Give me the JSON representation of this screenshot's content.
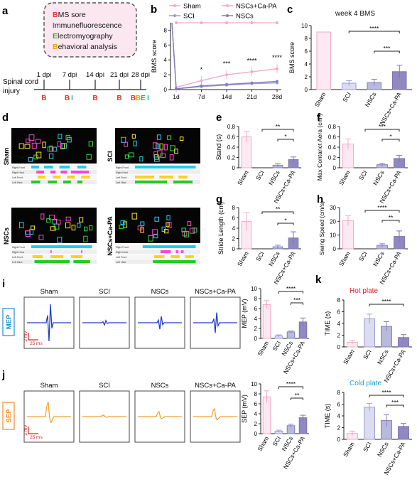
{
  "panel_letters": {
    "a": "a",
    "b": "b",
    "c": "c",
    "d": "d",
    "e": "e",
    "f": "f",
    "g": "g",
    "h": "h",
    "i": "i",
    "j": "j",
    "k": "k"
  },
  "colors": {
    "sham": "#f4a9c8",
    "sci": "#9b9bd6",
    "nscs": "#7f7fbf",
    "combo": "#8b7fc0",
    "combo_bar": "#7d73b5",
    "combo_line": "#f4a9c8",
    "mep_wave": "#1f3fc7",
    "sep_wave": "#f5a030",
    "dpi_red": "#e53333",
    "orange": "#f39c12",
    "green": "#2ea84a",
    "teal": "#2bb3b3",
    "dark": "#222222"
  },
  "timeline": {
    "box_lines": [
      {
        "first": "B",
        "rest": "MS sore",
        "color": "#e53333"
      },
      {
        "first": "I",
        "rest": "mmunefluorescence",
        "color": "#2e7dd1"
      },
      {
        "first": "E",
        "rest": "lectromyography",
        "color": "#2ea84a"
      },
      {
        "first": "B",
        "rest": "ehavioral analysis",
        "color": "#f39c12"
      }
    ],
    "injury_label_1": "Spinal cord",
    "injury_label_2": "injury",
    "dpi_labels": [
      "1 dpi",
      "7 dpi",
      "14 dpi",
      "21 dpi",
      "28 dpi"
    ],
    "marks": [
      [
        {
          "t": "B",
          "c": "#e53333"
        }
      ],
      [
        {
          "t": "B",
          "c": "#e53333"
        },
        {
          "t": "I",
          "c": "#2bb3b3"
        }
      ],
      [
        {
          "t": "B",
          "c": "#e53333"
        }
      ],
      [
        {
          "t": "B",
          "c": "#e53333"
        }
      ],
      [
        {
          "t": "B",
          "c": "#e53333"
        },
        {
          "t": "B",
          "c": "#f39c12"
        },
        {
          "t": "E",
          "c": "#2ea84a"
        },
        {
          "t": "I",
          "c": "#2bb3b3"
        }
      ]
    ]
  },
  "gait": {
    "labels": [
      "Sham",
      "SCI",
      "NSCs",
      "NSCs+Ca-PA"
    ],
    "row_labels": [
      "Right Front",
      "Right Hind",
      "Left Front",
      "Left Hind"
    ]
  },
  "emg": {
    "mep_tag": "MEP",
    "sep_tag": "SEP",
    "groups": [
      "Sham",
      "SCI",
      "NSCs",
      "NSCs+Ca-PA"
    ],
    "scale_v": "2 mV",
    "scale_h": "25 ms"
  },
  "chart_data": [
    {
      "id": "b",
      "type": "line",
      "x": [
        "1d",
        "7d",
        "14d",
        "21d",
        "28d"
      ],
      "ylabel": "BMS score",
      "ylim": [
        0,
        9
      ],
      "yticks": [
        0,
        2,
        4,
        6,
        8
      ],
      "series": [
        {
          "name": "Sham",
          "values": [
            9,
            9,
            9,
            9,
            9
          ]
        },
        {
          "name": "SCI",
          "values": [
            0.1,
            0.4,
            0.6,
            0.8,
            0.9
          ]
        },
        {
          "name": "NSCs+Ca-PA",
          "values": [
            0.3,
            1.2,
            2.0,
            2.4,
            2.8
          ]
        },
        {
          "name": "NSCs",
          "values": [
            0.1,
            0.5,
            0.7,
            0.9,
            1.1
          ]
        }
      ],
      "annotations": [
        "*",
        "***",
        "****",
        "****"
      ]
    },
    {
      "id": "c",
      "type": "bar",
      "title": "week 4 BMS",
      "categories": [
        "Sham",
        "SCI",
        "NSCs",
        "NSCs+Ca-PA"
      ],
      "values": [
        9,
        1.0,
        1.1,
        2.8
      ],
      "errors": [
        0,
        0.4,
        0.5,
        1.0
      ],
      "ylabel": "BMS score",
      "ylim": [
        0,
        10
      ],
      "yticks": [
        0,
        2,
        4,
        6,
        8,
        10
      ],
      "sig": [
        {
          "from": 1,
          "to": 3,
          "label": "****"
        },
        {
          "from": 2,
          "to": 3,
          "label": "***"
        }
      ]
    },
    {
      "id": "e",
      "type": "bar",
      "categories": [
        "Sham",
        "SCI",
        "NSCs",
        "NSCs+Ca-PA"
      ],
      "values": [
        0.6,
        0.0,
        0.05,
        0.16
      ],
      "errors": [
        0.1,
        0,
        0.03,
        0.05
      ],
      "ylabel": "Stand (s)",
      "ylim": [
        0,
        0.8
      ],
      "yticks": [
        0,
        0.2,
        0.4,
        0.6,
        0.8
      ],
      "sig": [
        {
          "from": 1,
          "to": 3,
          "label": "**"
        },
        {
          "from": 2,
          "to": 3,
          "label": "*"
        }
      ]
    },
    {
      "id": "f",
      "type": "bar",
      "categories": [
        "Sham",
        "SCI",
        "NSCs",
        "NSCs+Ca-PA"
      ],
      "values": [
        0.46,
        0.0,
        0.06,
        0.18
      ],
      "errors": [
        0.1,
        0,
        0.03,
        0.06
      ],
      "ylabel": "Max Contanct Aera (cm²)",
      "ylim": [
        0,
        0.8
      ],
      "yticks": [
        0,
        0.2,
        0.4,
        0.6,
        0.8
      ],
      "sig": [
        {
          "from": 1,
          "to": 3,
          "label": "***"
        },
        {
          "from": 2,
          "to": 3,
          "label": "*"
        }
      ]
    },
    {
      "id": "g",
      "type": "bar",
      "categories": [
        "Sham",
        "SCI",
        "NSCs",
        "NSCs+Ca-PA"
      ],
      "values": [
        5.3,
        0.0,
        0.4,
        2.1
      ],
      "errors": [
        1.7,
        0,
        0.3,
        1.2
      ],
      "ylabel": "Stride Length (cm)",
      "ylim": [
        0,
        8
      ],
      "yticks": [
        0,
        2,
        4,
        6,
        8
      ],
      "sig": [
        {
          "from": 1,
          "to": 3,
          "label": "**"
        },
        {
          "from": 2,
          "to": 3,
          "label": "*"
        }
      ]
    },
    {
      "id": "h",
      "type": "bar",
      "categories": [
        "Sham",
        "SCI",
        "NSCs",
        "NSCs+Ca-PA"
      ],
      "values": [
        20.5,
        0.0,
        2.5,
        9.0
      ],
      "errors": [
        3.5,
        0,
        1.2,
        4.0
      ],
      "ylabel": "Swing Speed (cm/s)",
      "ylim": [
        0,
        30
      ],
      "yticks": [
        0,
        10,
        20,
        30
      ],
      "sig": [
        {
          "from": 1,
          "to": 3,
          "label": "****"
        },
        {
          "from": 2,
          "to": 3,
          "label": "**"
        }
      ]
    },
    {
      "id": "i",
      "type": "bar",
      "categories": [
        "Sham",
        "SCI",
        "NSCs",
        "NSCs+Ca-PA"
      ],
      "values": [
        6.8,
        0.5,
        1.3,
        3.3
      ],
      "errors": [
        0.8,
        0.2,
        0.2,
        0.8
      ],
      "ylabel": "MEP (mV)",
      "ylim": [
        0,
        10
      ],
      "yticks": [
        0,
        2,
        4,
        6,
        8,
        10
      ],
      "sig": [
        {
          "from": 1,
          "to": 3,
          "label": "****"
        },
        {
          "from": 2,
          "to": 3,
          "label": "***"
        }
      ]
    },
    {
      "id": "j",
      "type": "bar",
      "categories": [
        "Sham",
        "SCI",
        "NSCs",
        "NSCs+Ca-PA"
      ],
      "values": [
        7.4,
        0.5,
        1.6,
        3.2
      ],
      "errors": [
        1.2,
        0.2,
        0.3,
        0.5
      ],
      "ylabel": "SEP (mV)",
      "ylim": [
        0,
        10
      ],
      "yticks": [
        0,
        2,
        4,
        6,
        8,
        10
      ],
      "sig": [
        {
          "from": 1,
          "to": 3,
          "label": "****"
        },
        {
          "from": 2,
          "to": 3,
          "label": "**"
        }
      ]
    },
    {
      "id": "k1",
      "type": "bar",
      "title": "Hot plate",
      "categories": [
        "Sham",
        "SCI",
        "NSCs",
        "NSCs+Ca-PA"
      ],
      "values": [
        0.8,
        4.8,
        3.5,
        1.6
      ],
      "errors": [
        0.3,
        0.8,
        0.8,
        0.5
      ],
      "ylabel": "TIME (s)",
      "ylim": [
        0,
        8
      ],
      "yticks": [
        0,
        2,
        4,
        6,
        8
      ],
      "sig": [
        {
          "from": 1,
          "to": 3,
          "label": "****"
        }
      ]
    },
    {
      "id": "k2",
      "type": "bar",
      "title": "Cold plate",
      "categories": [
        "Sham",
        "SCI",
        "NSCs",
        "NSCs+Ca-PA"
      ],
      "values": [
        1.0,
        5.5,
        3.2,
        2.2
      ],
      "errors": [
        0.4,
        0.6,
        1.0,
        0.5
      ],
      "ylabel": "TIME (s)",
      "ylim": [
        0,
        8
      ],
      "yticks": [
        0,
        2,
        4,
        6,
        8
      ],
      "sig": [
        {
          "from": 1,
          "to": 3,
          "label": "****"
        },
        {
          "from": 2,
          "to": 3,
          "label": "***"
        }
      ]
    }
  ]
}
